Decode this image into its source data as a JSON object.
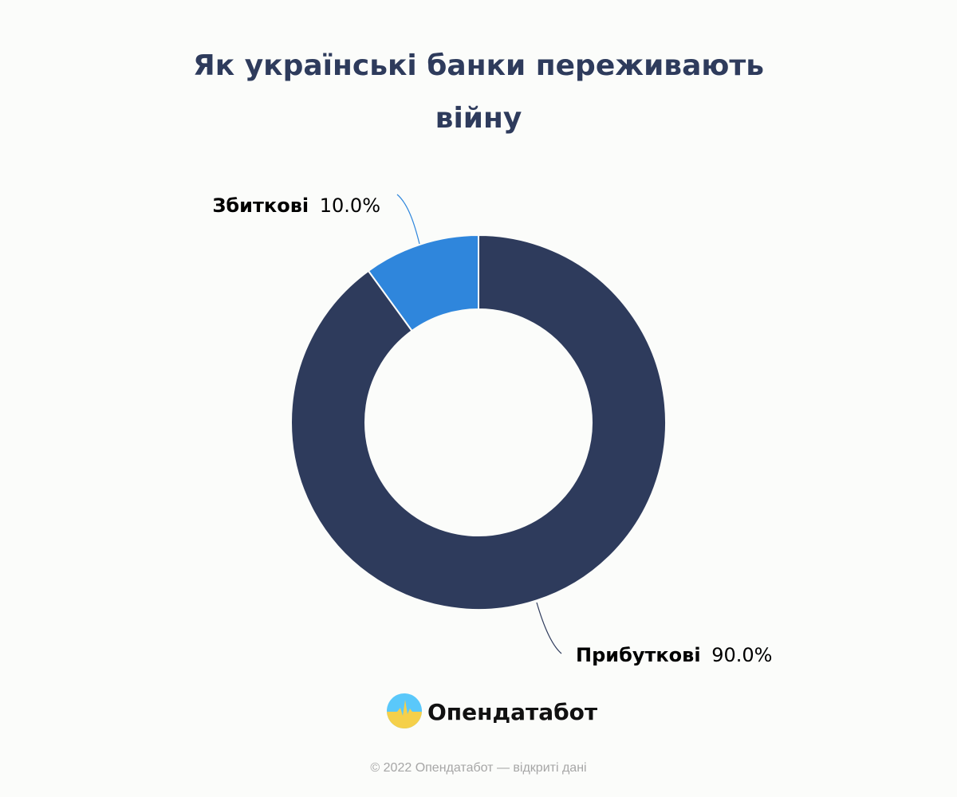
{
  "title": "Як українські банки переживають війну",
  "chart_data": {
    "type": "pie",
    "subtype": "donut",
    "slices": [
      {
        "name": "Збиткові",
        "value": 10.0,
        "label": "10.0%",
        "color": "#2f86dc"
      },
      {
        "name": "Прибуткові",
        "value": 90.0,
        "label": "90.0%",
        "color": "#2e3b5c"
      }
    ]
  },
  "logo": {
    "name": "Опендатабот",
    "colors": {
      "sky": "#5ac8fa",
      "field": "#f5d04a"
    }
  },
  "footer": "© 2022 Опендатабот — відкриті дані",
  "colors": {
    "background": "#fbfcfa",
    "title": "#2e3b5c"
  }
}
